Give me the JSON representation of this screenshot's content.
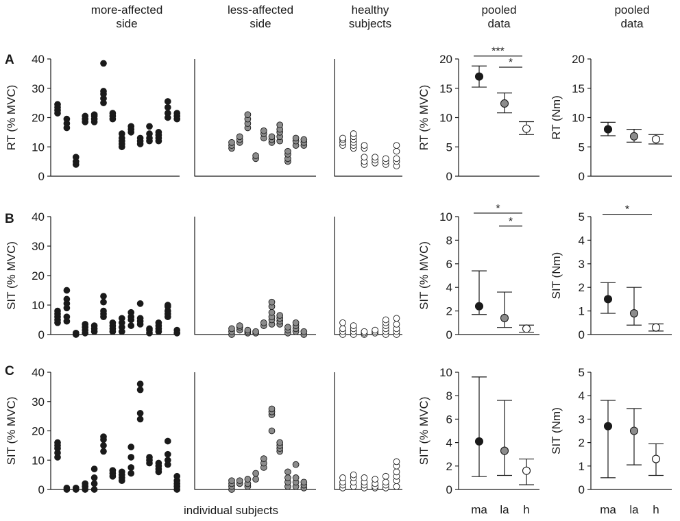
{
  "figure": {
    "column_headers": [
      "more-affected\nside",
      "less-affected\nside",
      "healthy\nsubjects",
      "pooled\ndata",
      "pooled\ndata"
    ],
    "x_label": "individual subjects",
    "row_letters": [
      "A",
      "B",
      "C"
    ],
    "colors": {
      "ma": "#1a1a1a",
      "la": "#8c8c8c",
      "h": "#ffffff",
      "stroke": "#1a1a1a"
    }
  },
  "chart_data": [
    {
      "type": "scatter",
      "panel": "A-individual",
      "ylabel": "RT  (% MVC)",
      "ylim": [
        0,
        40
      ],
      "yticks": [
        0,
        10,
        20,
        30,
        40
      ],
      "groups": [
        {
          "name": "more-affected side",
          "fill": "ma",
          "subjects": [
            [
              21.5,
              22.5,
              23.5,
              24.5
            ],
            [
              16.5,
              18,
              19.5
            ],
            [
              4,
              5,
              6.5
            ],
            [
              18.5,
              19.5,
              20.5
            ],
            [
              18.5,
              19.5,
              20.5,
              21
            ],
            [
              25,
              26.5,
              28,
              29,
              38.5
            ],
            [
              19.5,
              20.5,
              21.5
            ],
            [
              10,
              11,
              12,
              13,
              14.5
            ],
            [
              15,
              16,
              17
            ],
            [
              11,
              12,
              13
            ],
            [
              12,
              13,
              14.5,
              17
            ],
            [
              12,
              13,
              14,
              15
            ],
            [
              20,
              21.5,
              23.5,
              25.5
            ],
            [
              19.5,
              20.5,
              21.5
            ]
          ]
        },
        {
          "name": "less-affected side",
          "fill": "la",
          "subjects": [
            [
              9.5,
              10.5,
              11.5
            ],
            [
              11.5,
              12.5,
              13.5
            ],
            [
              16.5,
              18,
              19.5,
              21
            ],
            [
              6,
              7
            ],
            [
              13,
              14.5,
              15.5
            ],
            [
              11.5,
              12.5,
              13.5
            ],
            [
              12,
              13.5,
              15,
              16,
              17.5
            ],
            [
              5,
              6,
              7.5,
              8.5
            ],
            [
              10.5,
              12,
              13
            ],
            [
              10.5,
              11.5,
              12.5
            ]
          ]
        },
        {
          "name": "healthy subjects",
          "fill": "h",
          "subjects": [
            [
              10.5,
              11.5,
              12.5,
              13
            ],
            [
              9.5,
              10.5,
              11.5,
              12.5,
              13.5,
              14.5
            ],
            [
              4,
              5,
              6.5,
              9.5,
              10.5
            ],
            [
              4.5,
              5.5,
              6.5
            ],
            [
              4,
              5,
              6
            ],
            [
              3.5,
              5,
              6,
              8.5,
              10.5
            ]
          ]
        }
      ]
    },
    {
      "type": "scatter",
      "panel": "B-individual",
      "ylabel": "SIT  (% MVC)",
      "ylim": [
        0,
        40
      ],
      "yticks": [
        0,
        10,
        20,
        30,
        40
      ],
      "groups": [
        {
          "name": "more-affected side",
          "fill": "ma",
          "subjects": [
            [
              4,
              5,
              6,
              7,
              8
            ],
            [
              4.5,
              6,
              9,
              10.5,
              12,
              15
            ],
            [
              0,
              0.5
            ],
            [
              0.5,
              1.5,
              2.5,
              3.5
            ],
            [
              1,
              2,
              3
            ],
            [
              6,
              7,
              8,
              11,
              13
            ],
            [
              1,
              2,
              3,
              4
            ],
            [
              1,
              2.5,
              4,
              5.5
            ],
            [
              3,
              5,
              6,
              7.5
            ],
            [
              3.5,
              4.5,
              5.5,
              10.5
            ],
            [
              0.5,
              1.5,
              2
            ],
            [
              1,
              2,
              3,
              4
            ],
            [
              6,
              7,
              8,
              9.5,
              10
            ],
            [
              0.5,
              1.5
            ]
          ]
        },
        {
          "name": "less-affected side",
          "fill": "la",
          "subjects": [
            [
              0,
              1,
              2
            ],
            [
              1.5,
              2.5,
              3
            ],
            [
              0.5,
              1,
              1.5
            ],
            [
              0.5,
              1
            ],
            [
              3,
              4
            ],
            [
              3.5,
              5,
              6,
              7.5,
              9.5,
              11
            ],
            [
              3.5,
              4.5,
              5.5,
              6.5
            ],
            [
              0.5,
              1.5,
              2.5
            ],
            [
              1,
              2,
              3,
              4
            ],
            [
              0,
              1
            ]
          ]
        },
        {
          "name": "healthy subjects",
          "fill": "h",
          "subjects": [
            [
              0,
              1,
              2,
              4
            ],
            [
              0,
              1,
              2,
              3
            ],
            [
              0,
              0.5,
              1
            ],
            [
              0.5,
              1,
              1.5
            ],
            [
              0,
              1,
              2,
              3,
              4,
              5
            ],
            [
              0,
              1,
              2,
              3.5,
              5.5
            ]
          ]
        }
      ]
    },
    {
      "type": "scatter",
      "panel": "C-individual",
      "ylabel": "SIT  (% MVC)",
      "ylim": [
        0,
        40
      ],
      "yticks": [
        0,
        10,
        20,
        30,
        40
      ],
      "groups": [
        {
          "name": "more-affected side",
          "fill": "ma",
          "subjects": [
            [
              11,
              12.5,
              14,
              15,
              16
            ],
            [
              0,
              0.5
            ],
            [
              0,
              0.5
            ],
            [
              0,
              1,
              2
            ],
            [
              0,
              2,
              4,
              7
            ],
            [
              13,
              15,
              17,
              18
            ],
            [
              4.5,
              5.5,
              6.5
            ],
            [
              3,
              4,
              5,
              6
            ],
            [
              5.5,
              7.5,
              11,
              14.5
            ],
            [
              24,
              26,
              34,
              36
            ],
            [
              9,
              10,
              11
            ],
            [
              6,
              7,
              8,
              9
            ],
            [
              8.5,
              10,
              12,
              16.5
            ],
            [
              0,
              1,
              2,
              3,
              4.5
            ]
          ]
        },
        {
          "name": "less-affected side",
          "fill": "la",
          "subjects": [
            [
              0,
              1,
              2,
              3
            ],
            [
              2,
              3
            ],
            [
              1,
              2,
              3.5
            ],
            [
              3.5,
              5.5
            ],
            [
              7.5,
              9,
              10.5
            ],
            [
              20,
              25.5,
              26.5,
              27.5
            ],
            [
              13,
              14,
              15,
              16
            ],
            [
              1,
              2.5,
              4,
              6
            ],
            [
              1,
              2.5,
              4,
              8.5
            ],
            [
              0.5,
              1.5,
              2.5
            ]
          ]
        },
        {
          "name": "healthy subjects",
          "fill": "h",
          "subjects": [
            [
              0.5,
              1.5,
              2.5,
              4
            ],
            [
              1,
              2.5,
              4,
              5
            ],
            [
              0.5,
              1.5,
              2.5,
              4
            ],
            [
              0.5,
              1,
              2,
              3.5
            ],
            [
              0.5,
              1.5,
              2.5,
              4.5
            ],
            [
              1,
              3,
              4.5,
              6,
              8,
              9.5
            ]
          ]
        }
      ]
    },
    {
      "type": "errorbar",
      "panel": "A-pooled-mvc",
      "ylabel": "RT (% MVC)",
      "ylim": [
        0,
        20
      ],
      "yticks": [
        0,
        5,
        10,
        15,
        20
      ],
      "categories": [
        "ma",
        "la",
        "h"
      ],
      "points": [
        {
          "mean": 17,
          "lo": 15.2,
          "hi": 18.8
        },
        {
          "mean": 12.4,
          "lo": 10.8,
          "hi": 14.2
        },
        {
          "mean": 8.1,
          "lo": 7.1,
          "hi": 9.3
        }
      ],
      "annotations": [
        {
          "from": "ma",
          "to": "h",
          "label": "***",
          "y": 20.5
        },
        {
          "from": "la",
          "to": "h",
          "label": "*",
          "y": 18.6
        }
      ]
    },
    {
      "type": "errorbar",
      "panel": "A-pooled-nm",
      "ylabel": "RT (Nm)",
      "ylim": [
        0,
        20
      ],
      "yticks": [
        0,
        5,
        10,
        15,
        20
      ],
      "categories": [
        "ma",
        "la",
        "h"
      ],
      "points": [
        {
          "mean": 8,
          "lo": 6.9,
          "hi": 9.2
        },
        {
          "mean": 6.8,
          "lo": 5.8,
          "hi": 8
        },
        {
          "mean": 6.3,
          "lo": 5.5,
          "hi": 7.1
        }
      ],
      "annotations": []
    },
    {
      "type": "errorbar",
      "panel": "B-pooled-mvc",
      "ylabel": "SIT (% MVC)",
      "ylim": [
        0,
        10
      ],
      "yticks": [
        0,
        2,
        4,
        6,
        8,
        10
      ],
      "categories": [
        "ma",
        "la",
        "h"
      ],
      "points": [
        {
          "mean": 2.4,
          "lo": 1.7,
          "hi": 5.4
        },
        {
          "mean": 1.4,
          "lo": 0.6,
          "hi": 3.6
        },
        {
          "mean": 0.5,
          "lo": 0.2,
          "hi": 0.8
        }
      ],
      "annotations": [
        {
          "from": "ma",
          "to": "h",
          "label": "*",
          "y": 10.3
        },
        {
          "from": "la",
          "to": "h",
          "label": "*",
          "y": 9.2
        }
      ]
    },
    {
      "type": "errorbar",
      "panel": "B-pooled-nm",
      "ylabel": "SIT (Nm)",
      "ylim": [
        0,
        5
      ],
      "yticks": [
        0,
        1,
        2,
        3,
        4,
        5
      ],
      "categories": [
        "ma",
        "la",
        "h"
      ],
      "points": [
        {
          "mean": 1.5,
          "lo": 0.9,
          "hi": 2.2
        },
        {
          "mean": 0.9,
          "lo": 0.4,
          "hi": 2.0
        },
        {
          "mean": 0.3,
          "lo": 0.15,
          "hi": 0.45
        }
      ],
      "annotations": [
        {
          "from": "ma",
          "to": "h",
          "label": "*",
          "y": 5.1
        }
      ]
    },
    {
      "type": "errorbar",
      "panel": "C-pooled-mvc",
      "ylabel": "SIT (% MVC)",
      "ylim": [
        0,
        10
      ],
      "yticks": [
        0,
        2,
        4,
        6,
        8,
        10
      ],
      "categories": [
        "ma",
        "la",
        "h"
      ],
      "points": [
        {
          "mean": 4.1,
          "lo": 1.1,
          "hi": 9.6
        },
        {
          "mean": 3.3,
          "lo": 1.2,
          "hi": 7.6
        },
        {
          "mean": 1.6,
          "lo": 0.4,
          "hi": 2.6
        }
      ],
      "annotations": []
    },
    {
      "type": "errorbar",
      "panel": "C-pooled-nm",
      "ylabel": "SIT (Nm)",
      "ylim": [
        0,
        5
      ],
      "yticks": [
        0,
        1,
        2,
        3,
        4,
        5
      ],
      "categories": [
        "ma",
        "la",
        "h"
      ],
      "points": [
        {
          "mean": 2.7,
          "lo": 0.5,
          "hi": 3.8
        },
        {
          "mean": 2.5,
          "lo": 1.05,
          "hi": 3.45
        },
        {
          "mean": 1.3,
          "lo": 0.6,
          "hi": 1.95
        }
      ],
      "annotations": []
    }
  ]
}
